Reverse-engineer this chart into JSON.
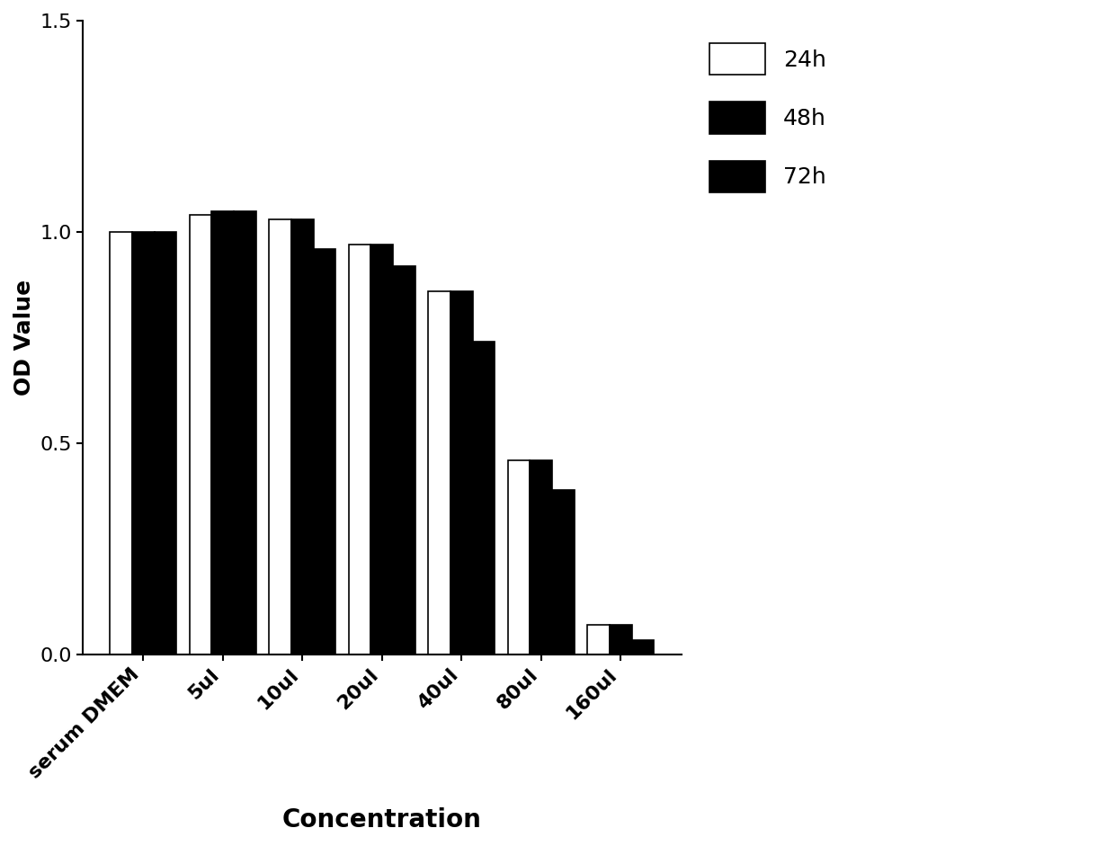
{
  "categories": [
    "serum DMEM",
    "5ul",
    "10ul",
    "20ul",
    "40ul",
    "80ul",
    "160ul"
  ],
  "values_24h": [
    1.0,
    1.04,
    1.03,
    0.97,
    0.86,
    0.46,
    0.07
  ],
  "values_48h": [
    1.0,
    1.05,
    1.03,
    0.97,
    0.86,
    0.46,
    0.07
  ],
  "values_72h": [
    1.0,
    1.05,
    0.96,
    0.92,
    0.74,
    0.39,
    0.035
  ],
  "color_24h": "#ffffff",
  "color_48h": "#000000",
  "color_72h": "#000000",
  "edgecolor_24h": "#000000",
  "edgecolor_48h": "#000000",
  "edgecolor_72h": "#000000",
  "ylabel": "OD Value",
  "xlabel": "Concentration",
  "ylim": [
    0.0,
    1.5
  ],
  "yticks": [
    0.0,
    0.5,
    1.0,
    1.5
  ],
  "legend_labels": [
    "24h",
    "48h",
    "72h"
  ],
  "bar_width": 0.28,
  "ylabel_fontsize": 18,
  "xlabel_fontsize": 20,
  "tick_fontsize": 16,
  "legend_fontsize": 18,
  "background_color": "#ffffff"
}
